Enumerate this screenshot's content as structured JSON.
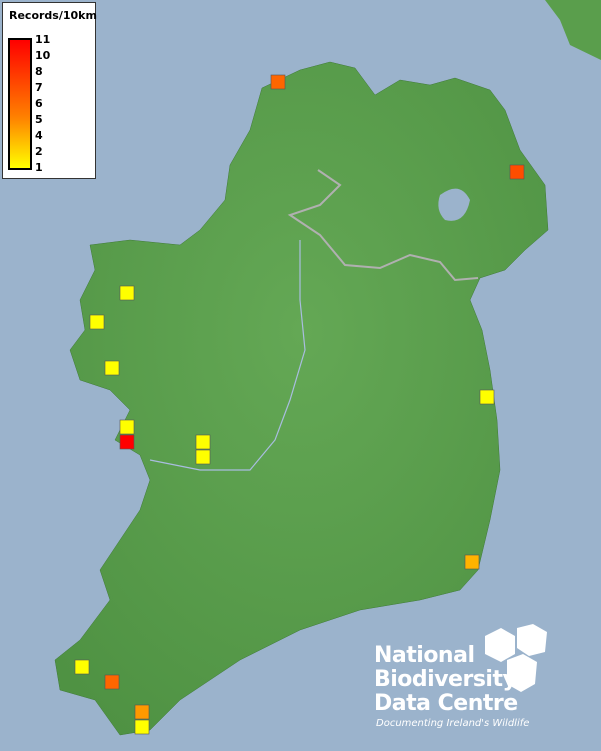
{
  "legend": {
    "title": "Records/10km",
    "labels": [
      "11",
      "10",
      "8",
      "7",
      "6",
      "5",
      "4",
      "2",
      "1"
    ],
    "colors": {
      "max": "#ff0000",
      "mid": "#ff8000",
      "min": "#ffff00"
    }
  },
  "logo": {
    "line1": "National",
    "line2": "Biodiversity",
    "line3": "Data Centre",
    "tagline": "Documenting Ireland's Wildlife"
  },
  "colors": {
    "sea": "#9bb3cc",
    "land": "#5a9e4c",
    "border": "#b0b0b0",
    "rivers": "#a9bde0"
  },
  "records": [
    7,
    8,
    1,
    1,
    1,
    1,
    1,
    11,
    1,
    1,
    4,
    1,
    7,
    5,
    1
  ]
}
